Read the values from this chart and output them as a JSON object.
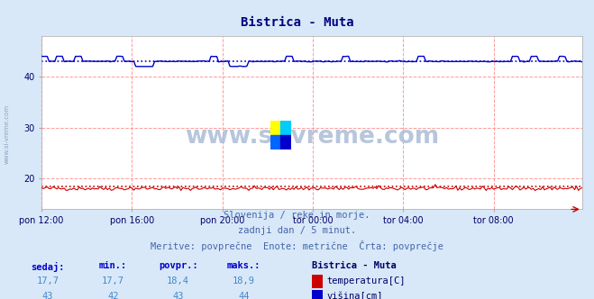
{
  "title": "Bistrica - Muta",
  "title_color": "#000080",
  "bg_color": "#d8e8f8",
  "plot_bg_color": "#ffffff",
  "grid_color": "#ff9999",
  "x_labels": [
    "pon 12:00",
    "pon 16:00",
    "pon 20:00",
    "tor 00:00",
    "tor 04:00",
    "tor 08:00"
  ],
  "x_ticks": [
    0,
    48,
    96,
    144,
    192,
    240
  ],
  "total_points": 288,
  "ylim": [
    14,
    48
  ],
  "yticks": [
    20,
    30,
    40
  ],
  "temp_color": "#cc0000",
  "visina_color": "#0000cc",
  "temp_avg": 18.4,
  "visina_avg": 43,
  "temp_min": 17.7,
  "temp_max": 18.9,
  "temp_sedaj": 17.7,
  "visina_min": 42,
  "visina_max": 44,
  "visina_sedaj": 43,
  "watermark": "www.si-vreme.com",
  "sub1": "Slovenija / reke in morje.",
  "sub2": "zadnji dan / 5 minut.",
  "sub3": "Meritve: povprečne  Enote: metrične  Črta: povprečje",
  "legend_title": "Bistrica - Muta",
  "legend_temp": "temperatura[C]",
  "legend_visina": "višina[cm]",
  "label_sedaj": "sedaj:",
  "label_min": "min.:",
  "label_povpr": "povpr.:",
  "label_maks": "maks.:",
  "logo_colors": [
    "#ffff00",
    "#00ccff",
    "#0066ff",
    "#0000cc"
  ]
}
